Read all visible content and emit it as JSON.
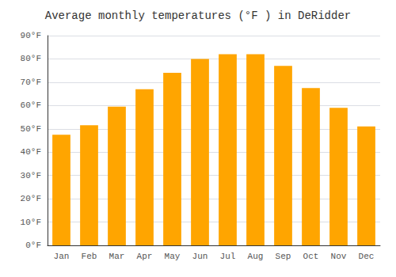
{
  "chart_data": {
    "type": "bar",
    "title": "Average monthly temperatures (°F ) in DeRidder",
    "categories": [
      "Jan",
      "Feb",
      "Mar",
      "Apr",
      "May",
      "Jun",
      "Jul",
      "Aug",
      "Sep",
      "Oct",
      "Nov",
      "Dec"
    ],
    "values": [
      47.5,
      51.5,
      59.5,
      67,
      74,
      80,
      82,
      82,
      77,
      67.5,
      59,
      51
    ],
    "color": "#FFA500",
    "ylim": [
      0,
      90
    ],
    "yticks": [
      {
        "value": 0,
        "label": "0°F"
      },
      {
        "value": 10,
        "label": "10°F"
      },
      {
        "value": 20,
        "label": "20°F"
      },
      {
        "value": 30,
        "label": "30°F"
      },
      {
        "value": 40,
        "label": "40°F"
      },
      {
        "value": 50,
        "label": "50°F"
      },
      {
        "value": 60,
        "label": "60°F"
      },
      {
        "value": 70,
        "label": "70°F"
      },
      {
        "value": 80,
        "label": "80°F"
      },
      {
        "value": 90,
        "label": "90°F"
      }
    ],
    "grid": true
  }
}
